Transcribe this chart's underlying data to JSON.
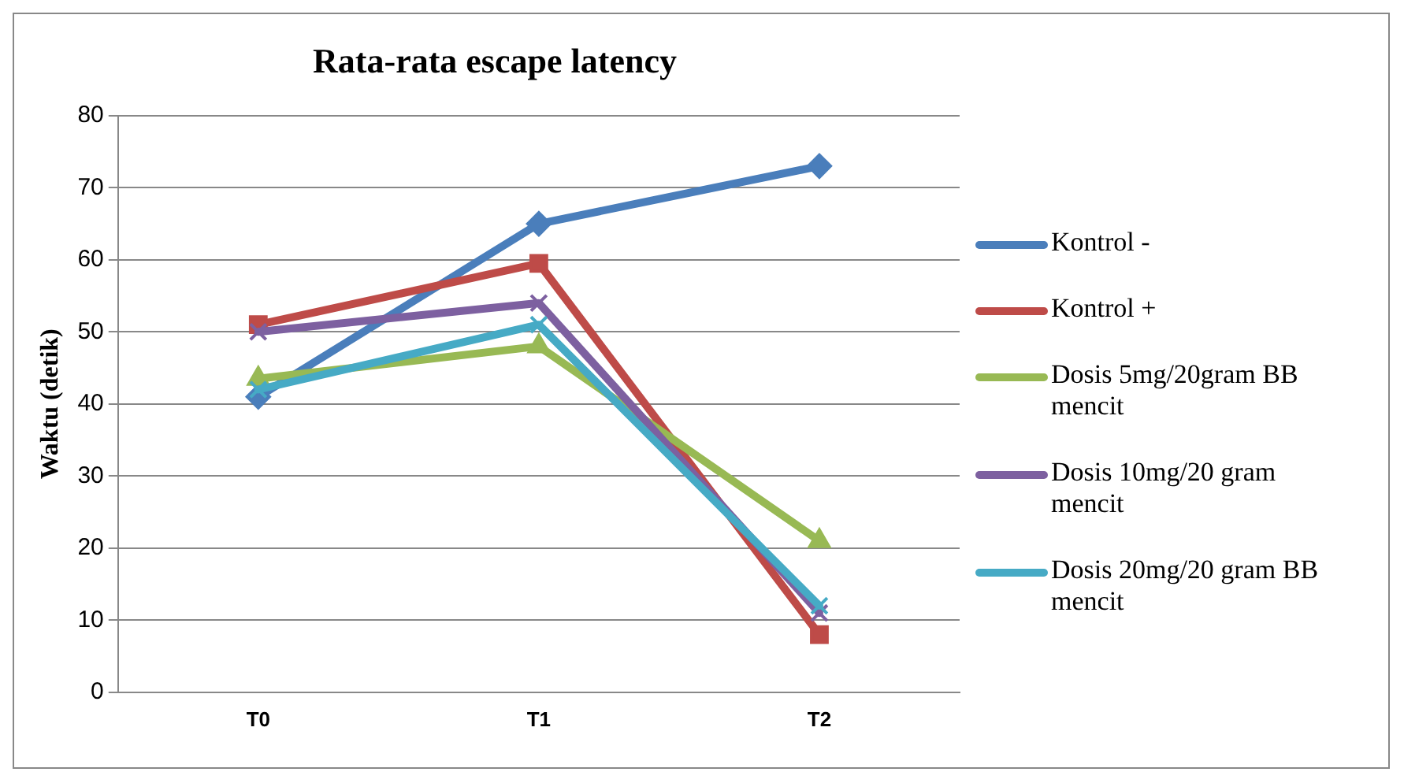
{
  "chart_data": {
    "type": "line",
    "title": "Rata-rata escape latency",
    "ylabel": "Waktu (detik)",
    "categories": [
      "T0",
      "T1",
      "T2"
    ],
    "series": [
      {
        "name": "Kontrol -",
        "color": "#4a7ebb",
        "values": [
          41,
          65,
          73
        ],
        "marker": "diamond"
      },
      {
        "name": "Kontrol +",
        "color": "#be4b48",
        "values": [
          51,
          59.5,
          8
        ],
        "marker": "square"
      },
      {
        "name": "Dosis 5mg/20gram BB mencit",
        "color": "#98b954",
        "values": [
          43.5,
          48,
          21
        ],
        "marker": "triangle"
      },
      {
        "name": "Dosis 10mg/20 gram mencit",
        "color": "#7d60a0",
        "values": [
          50,
          54,
          11
        ],
        "marker": "cross"
      },
      {
        "name": "Dosis 20mg/20 gram BB mencit",
        "color": "#46aac5",
        "values": [
          42,
          51,
          12
        ],
        "marker": "cross"
      }
    ],
    "ylim": [
      0,
      80
    ],
    "yticks": [
      0,
      10,
      20,
      30,
      40,
      50,
      60,
      70,
      80
    ],
    "grid": "y",
    "legend": "right",
    "line_style": "solid"
  }
}
